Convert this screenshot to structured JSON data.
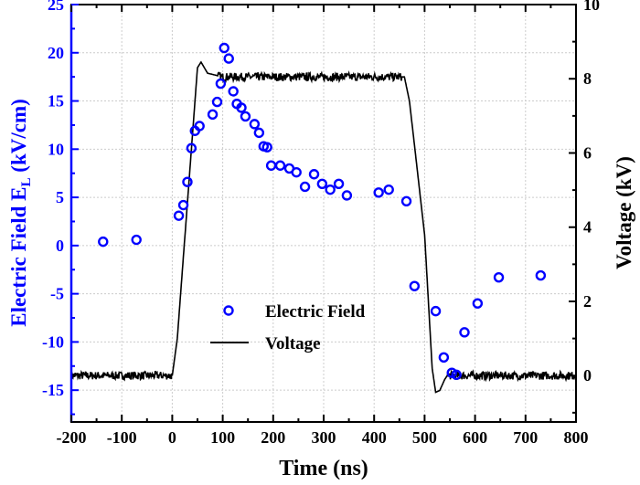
{
  "chart_data": {
    "type": "scatter+line",
    "xlabel": "Time (ns)",
    "ylabel_left": "Electric Field  E",
    "ylabel_left_sub": "L",
    "ylabel_left_unit": " (kV/cm)",
    "ylabel_right": "Voltage (kV)",
    "xlim": [
      -200,
      800
    ],
    "ylim_left": [
      -18.3,
      25
    ],
    "ylim_right": [
      -1.25,
      10
    ],
    "xticks": [
      "-200",
      "-100",
      "0",
      "100",
      "200",
      "300",
      "400",
      "500",
      "600",
      "700",
      "800"
    ],
    "xtick_values": [
      -200,
      -100,
      0,
      100,
      200,
      300,
      400,
      500,
      600,
      700,
      800
    ],
    "yticks_left": [
      "-15",
      "-10",
      "-5",
      "0",
      "5",
      "10",
      "15",
      "20",
      "25"
    ],
    "ytick_left_values": [
      -15,
      -10,
      -5,
      0,
      5,
      10,
      15,
      20,
      25
    ],
    "yticks_right": [
      "0",
      "2",
      "4",
      "6",
      "8",
      "10"
    ],
    "ytick_right_values": [
      0,
      2,
      4,
      6,
      8,
      10
    ],
    "grid": true,
    "legend": {
      "placement": "center-bottom",
      "entries": [
        "Electric Field",
        "Voltage"
      ]
    },
    "colors": {
      "field": "#0000ff",
      "voltage": "#000000",
      "left_axis": "#0000ff"
    },
    "series": [
      {
        "name": "Electric Field",
        "axis": "left",
        "marker": "open-circle",
        "x": [
          -137,
          -71,
          13,
          22,
          30,
          38,
          45,
          54,
          80,
          89,
          96,
          103,
          112,
          121,
          128,
          137,
          145,
          163,
          172,
          181,
          188,
          196,
          214,
          232,
          246,
          263,
          281,
          297,
          313,
          330,
          346,
          409,
          429,
          464,
          480,
          522,
          538,
          554,
          563,
          579,
          605,
          647,
          730
        ],
        "y": [
          0.4,
          0.6,
          3.1,
          4.2,
          6.6,
          10.1,
          11.9,
          12.4,
          13.6,
          14.9,
          16.8,
          20.5,
          19.4,
          16.0,
          14.7,
          14.3,
          13.4,
          12.6,
          11.7,
          10.3,
          10.2,
          8.3,
          8.3,
          8.0,
          7.6,
          6.1,
          7.4,
          6.4,
          5.8,
          6.4,
          5.2,
          5.5,
          5.8,
          4.6,
          -4.2,
          -6.8,
          -11.6,
          -13.2,
          -13.4,
          -9.0,
          -6.0,
          -3.3,
          -3.1
        ]
      },
      {
        "name": "Voltage",
        "axis": "right",
        "marker": "line",
        "x": [
          -200,
          0,
          10,
          50,
          57,
          70,
          100,
          460,
          470,
          500,
          515,
          522,
          530,
          540,
          545,
          800
        ],
        "y": [
          0,
          0,
          1.0,
          8.3,
          8.45,
          8.15,
          8.05,
          8.05,
          7.4,
          3.8,
          0.2,
          -0.45,
          -0.4,
          -0.1,
          0,
          0
        ]
      }
    ]
  }
}
